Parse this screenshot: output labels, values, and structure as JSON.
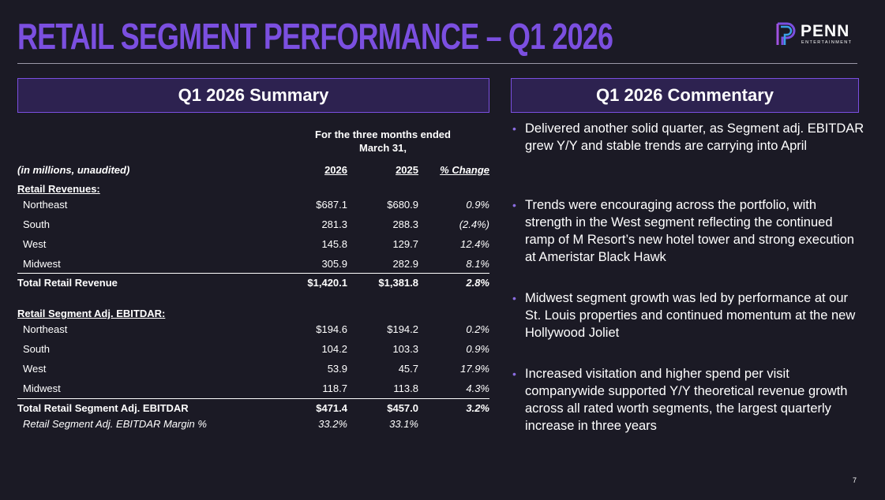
{
  "header": {
    "title": "RETAIL SEGMENT PERFORMANCE – Q1 2026",
    "logo": {
      "brand": "PENN",
      "subtitle": "ENTERTAINMENT"
    }
  },
  "summary": {
    "heading": "Q1 2026 Summary",
    "period_line1": "For the three months ended",
    "period_line2": "March 31,",
    "columns": {
      "label": "(in millions, unaudited)",
      "y2026": "2026",
      "y2025": "2025",
      "change": "% Change"
    },
    "revenues": {
      "section": "Retail Revenues:",
      "rows": [
        {
          "label": "Northeast",
          "v2026": "$687.1",
          "v2025": "$680.9",
          "change": "0.9%"
        },
        {
          "label": "South",
          "v2026": "281.3",
          "v2025": "288.3",
          "change": "(2.4%)"
        },
        {
          "label": "West",
          "v2026": "145.8",
          "v2025": "129.7",
          "change": "12.4%"
        },
        {
          "label": "Midwest",
          "v2026": "305.9",
          "v2025": "282.9",
          "change": "8.1%"
        }
      ],
      "total": {
        "label": "Total Retail Revenue",
        "v2026": "$1,420.1",
        "v2025": "$1,381.8",
        "change": "2.8%"
      }
    },
    "ebitdar": {
      "section": "Retail Segment Adj. EBITDAR:",
      "rows": [
        {
          "label": "Northeast",
          "v2026": "$194.6",
          "v2025": "$194.2",
          "change": "0.2%"
        },
        {
          "label": "South",
          "v2026": "104.2",
          "v2025": "103.3",
          "change": "0.9%"
        },
        {
          "label": "West",
          "v2026": "53.9",
          "v2025": "45.7",
          "change": "17.9%"
        },
        {
          "label": "Midwest",
          "v2026": "118.7",
          "v2025": "113.8",
          "change": "4.3%"
        }
      ],
      "total": {
        "label": "Total Retail Segment Adj. EBITDAR",
        "v2026": "$471.4",
        "v2025": "$457.0",
        "change": "3.2%"
      },
      "margin": {
        "label": "Retail Segment Adj. EBITDAR Margin %",
        "v2026": "33.2%",
        "v2025": "33.1%"
      }
    }
  },
  "commentary": {
    "heading": "Q1 2026 Commentary",
    "bullets": [
      "Delivered another solid quarter, as Segment adj. EBITDAR grew Y/Y and stable trends are carrying into April",
      "Trends were encouraging across the portfolio, with strength in the West segment reflecting the continued ramp of M Resort’s new hotel tower and strong execution at Ameristar Black Hawk",
      "Midwest segment growth was led by performance at our St. Louis properties and continued momentum at the new Hollywood Joliet",
      "Increased visitation and higher spend per visit companywide supported Y/Y theoretical revenue growth across all rated worth segments, the largest quarterly increase in three years"
    ]
  },
  "footer": {
    "page_number": "7"
  },
  "colors": {
    "accent": "#7b4fe0",
    "background": "#1b1a25",
    "panel": "#2d2250"
  }
}
